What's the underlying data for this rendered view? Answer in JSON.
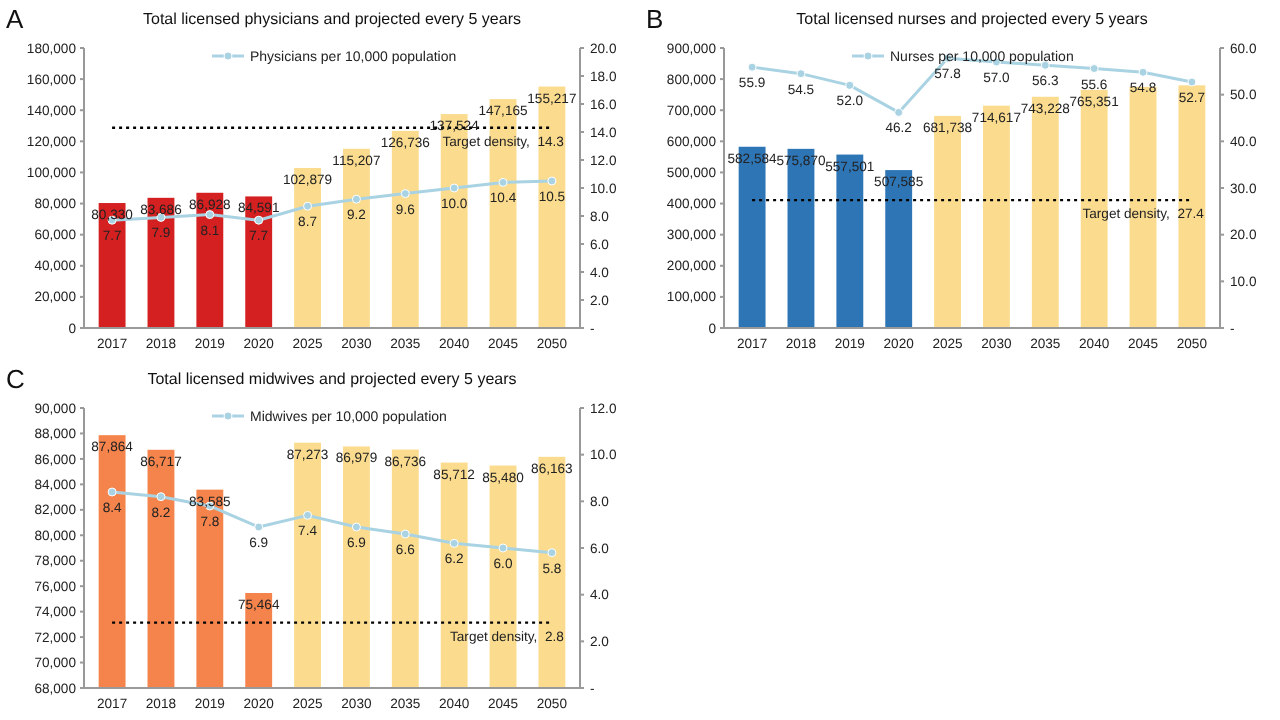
{
  "chart_data": [
    {
      "type": "bar",
      "title": "Total licensed physicians and projected every 5 years",
      "annotations": [
        "A"
      ],
      "categories": [
        "2017",
        "2018",
        "2019",
        "2020",
        "2025",
        "2030",
        "2035",
        "2040",
        "2045",
        "2050"
      ],
      "legend": "top",
      "marker": "circle",
      "series": [
        {
          "colors": [
            "#d42020",
            "#d42020",
            "#d42020",
            "#d42020",
            "#fbdc8e",
            "#fbdc8e",
            "#fbdc8e",
            "#fbdc8e",
            "#fbdc8e",
            "#fbdc8e"
          ],
          "values": [
            80330,
            83686,
            86928,
            84591,
            102879,
            115207,
            126736,
            137524,
            147165,
            155217
          ],
          "value_labels": [
            "80,330",
            "83,686",
            "86,928",
            "84,591",
            "102,879",
            "115,207",
            "126,736",
            "137,524",
            "147,165",
            "155,217"
          ]
        },
        {
          "type": "line",
          "name": "Physicians per 10,000 population",
          "axis": "y2",
          "color": "#a9d3e3",
          "values": [
            7.7,
            7.9,
            8.1,
            7.7,
            8.7,
            9.2,
            9.6,
            10.0,
            10.4,
            10.5
          ],
          "value_labels": [
            "7.7",
            "7.9",
            "8.1",
            "7.7",
            "8.7",
            "9.2",
            "9.6",
            "10.0",
            "10.4",
            "10.5"
          ]
        }
      ],
      "ylim": [
        0,
        180000
      ],
      "yticks": [
        0,
        {
          "value": 20000,
          "label": "20,000"
        },
        {
          "value": 40000,
          "label": "40,000"
        },
        {
          "value": 60000,
          "label": "60,000"
        },
        {
          "value": 80000,
          "label": "80,000"
        },
        {
          "value": 100000,
          "label": "100,000"
        },
        {
          "value": 120000,
          "label": "120,000"
        },
        {
          "value": 140000,
          "label": "140,000"
        },
        {
          "value": 160000,
          "label": "160,000"
        },
        {
          "value": 180000,
          "label": "180,000"
        }
      ],
      "y2lim": [
        0,
        20
      ],
      "y2ticks": [
        {
          "value": 0,
          "label": "-"
        },
        {
          "value": 2,
          "label": "2.0"
        },
        {
          "value": 4,
          "label": "4.0"
        },
        {
          "value": 6,
          "label": "6.0"
        },
        {
          "value": 8,
          "label": "8.0"
        },
        {
          "value": 10,
          "label": "10.0"
        },
        {
          "value": 12,
          "label": "12.0"
        },
        {
          "value": 14,
          "label": "14.0"
        },
        {
          "value": 16,
          "label": "16.0"
        },
        {
          "value": 18,
          "label": "18.0"
        },
        {
          "value": 20,
          "label": "20.0"
        }
      ],
      "ref_lines": [
        {
          "axis": "y2",
          "value": 14.3,
          "label": "Target density,  14.3",
          "color": "#000000",
          "line_style": "dotted"
        }
      ]
    },
    {
      "type": "bar",
      "title": "Total licensed nurses and projected every 5 years",
      "annotations": [
        "B"
      ],
      "categories": [
        "2017",
        "2018",
        "2019",
        "2020",
        "2025",
        "2030",
        "2035",
        "2040",
        "2045",
        "2050"
      ],
      "legend": "top",
      "marker": "circle",
      "series": [
        {
          "colors": [
            "#2e75b6",
            "#2e75b6",
            "#2e75b6",
            "#2e75b6",
            "#fbdc8e",
            "#fbdc8e",
            "#fbdc8e",
            "#fbdc8e",
            "#fbdc8e",
            "#fbdc8e"
          ],
          "values": [
            582584,
            575870,
            557501,
            507585,
            681738,
            714617,
            743228,
            765351,
            775000,
            780000
          ],
          "value_labels": [
            "582,584",
            "575,870",
            "557,501",
            "507,585",
            "681,738",
            "714,617",
            "743,228",
            "765,351",
            null,
            null
          ]
        },
        {
          "type": "line",
          "name": "Nurses per 10,000 population",
          "axis": "y2",
          "color": "#a9d3e3",
          "values": [
            55.9,
            54.5,
            52.0,
            46.2,
            57.8,
            57.0,
            56.3,
            55.6,
            54.8,
            52.7
          ],
          "value_labels": [
            "55.9",
            "54.5",
            "52.0",
            "46.2",
            "57.8",
            "57.0",
            "56.3",
            "55.6",
            "54.8",
            "52.7"
          ]
        }
      ],
      "ylim": [
        0,
        900000
      ],
      "yticks": [
        0,
        {
          "value": 100000,
          "label": "100,000"
        },
        {
          "value": 200000,
          "label": "200,000"
        },
        {
          "value": 300000,
          "label": "300,000"
        },
        {
          "value": 400000,
          "label": "400,000"
        },
        {
          "value": 500000,
          "label": "500,000"
        },
        {
          "value": 600000,
          "label": "600,000"
        },
        {
          "value": 700000,
          "label": "700,000"
        },
        {
          "value": 800000,
          "label": "800,000"
        },
        {
          "value": 900000,
          "label": "900,000"
        }
      ],
      "y2lim": [
        0,
        60
      ],
      "y2ticks": [
        {
          "value": 0,
          "label": "-"
        },
        {
          "value": 10,
          "label": "10.0"
        },
        {
          "value": 20,
          "label": "20.0"
        },
        {
          "value": 30,
          "label": "30.0"
        },
        {
          "value": 40,
          "label": "40.0"
        },
        {
          "value": 50,
          "label": "50.0"
        },
        {
          "value": 60,
          "label": "60.0"
        }
      ],
      "ref_lines": [
        {
          "axis": "y2",
          "value": 27.4,
          "label": "Target density,  27.4",
          "color": "#000000",
          "line_style": "dotted"
        }
      ]
    },
    {
      "type": "bar",
      "title": "Total licensed midwives and projected every 5 years",
      "annotations": [
        "C"
      ],
      "categories": [
        "2017",
        "2018",
        "2019",
        "2020",
        "2025",
        "2030",
        "2035",
        "2040",
        "2045",
        "2050"
      ],
      "legend": "top",
      "marker": "circle",
      "series": [
        {
          "colors": [
            "#f4844c",
            "#f4844c",
            "#f4844c",
            "#f4844c",
            "#fbdc8e",
            "#fbdc8e",
            "#fbdc8e",
            "#fbdc8e",
            "#fbdc8e",
            "#fbdc8e"
          ],
          "values": [
            87864,
            86717,
            83585,
            75464,
            87273,
            86979,
            86736,
            85712,
            85480,
            86163
          ],
          "value_labels": [
            "87,864",
            "86,717",
            "83,585",
            "75,464",
            "87,273",
            "86,979",
            "86,736",
            "85,712",
            "85,480",
            "86,163"
          ]
        },
        {
          "type": "line",
          "name": "Midwives per 10,000 population",
          "axis": "y2",
          "color": "#a9d3e3",
          "values": [
            8.4,
            8.2,
            7.8,
            6.9,
            7.4,
            6.9,
            6.6,
            6.2,
            6.0,
            5.8
          ],
          "value_labels": [
            "8.4",
            "8.2",
            "7.8",
            "6.9",
            "7.4",
            "6.9",
            "6.6",
            "6.2",
            "6.0",
            "5.8"
          ]
        }
      ],
      "ylim": [
        68000,
        90000
      ],
      "yticks": [
        {
          "value": 68000,
          "label": "68,000"
        },
        {
          "value": 70000,
          "label": "70,000"
        },
        {
          "value": 72000,
          "label": "72,000"
        },
        {
          "value": 74000,
          "label": "74,000"
        },
        {
          "value": 76000,
          "label": "76,000"
        },
        {
          "value": 78000,
          "label": "78,000"
        },
        {
          "value": 80000,
          "label": "80,000"
        },
        {
          "value": 82000,
          "label": "82,000"
        },
        {
          "value": 84000,
          "label": "84,000"
        },
        {
          "value": 86000,
          "label": "86,000"
        },
        {
          "value": 88000,
          "label": "88,000"
        },
        {
          "value": 90000,
          "label": "90,000"
        }
      ],
      "y2lim": [
        0,
        12
      ],
      "y2ticks": [
        {
          "value": 0,
          "label": "-"
        },
        {
          "value": 2,
          "label": "2.0"
        },
        {
          "value": 4,
          "label": "4.0"
        },
        {
          "value": 6,
          "label": "6.0"
        },
        {
          "value": 8,
          "label": "8.0"
        },
        {
          "value": 10,
          "label": "10.0"
        },
        {
          "value": 12,
          "label": "12.0"
        }
      ],
      "ref_lines": [
        {
          "axis": "y2",
          "value": 2.8,
          "label": "Target density,  2.8",
          "color": "#000000",
          "line_style": "dotted"
        }
      ]
    }
  ]
}
